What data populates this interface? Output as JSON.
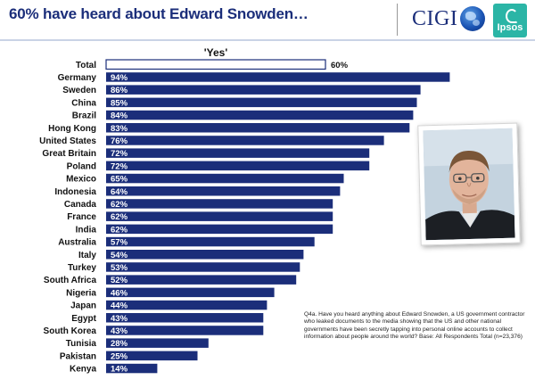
{
  "header": {
    "title": "60% have heard about Edward Snowden…",
    "cigi_logo_text": "CIGI",
    "ipsos_logo_text": "Ipsos"
  },
  "colors": {
    "bar": "#1b2e7a",
    "title": "#1b2e7a",
    "bar_label": "#ffffff"
  },
  "photo": {
    "subject": "portrait-photo"
  },
  "footnote": "Q4a.  Have you heard anything about Edward Snowden, a US government contractor who leaked documents to the media showing that the US and other national governments have been secretly tapping into personal online accounts to collect information about people around the world? Base: All Respondents Total (n=23,376)",
  "chart_data": {
    "type": "bar",
    "orientation": "horizontal",
    "title": "'Yes'",
    "categories": [
      "Total",
      "Germany",
      "Sweden",
      "China",
      "Brazil",
      "Hong Kong",
      "United States",
      "Great Britain",
      "Poland",
      "Mexico",
      "Indonesia",
      "Canada",
      "France",
      "India",
      "Australia",
      "Italy",
      "Turkey",
      "South Africa",
      "Nigeria",
      "Japan",
      "Egypt",
      "South Korea",
      "Tunisia",
      "Pakistan",
      "Kenya"
    ],
    "values": [
      60,
      94,
      86,
      85,
      84,
      83,
      76,
      72,
      72,
      65,
      64,
      62,
      62,
      62,
      57,
      54,
      53,
      52,
      46,
      44,
      43,
      43,
      28,
      25,
      14
    ],
    "value_labels": [
      "60%",
      "94%",
      "86%",
      "85%",
      "84%",
      "83%",
      "76%",
      "72%",
      "72%",
      "65%",
      "64%",
      "62%",
      "62%",
      "62%",
      "57%",
      "54%",
      "53%",
      "52%",
      "46%",
      "44%",
      "43%",
      "43%",
      "28%",
      "25%",
      "14%"
    ],
    "highlight": "Total",
    "xlim": [
      0,
      100
    ],
    "grid": false,
    "legend": "none"
  }
}
